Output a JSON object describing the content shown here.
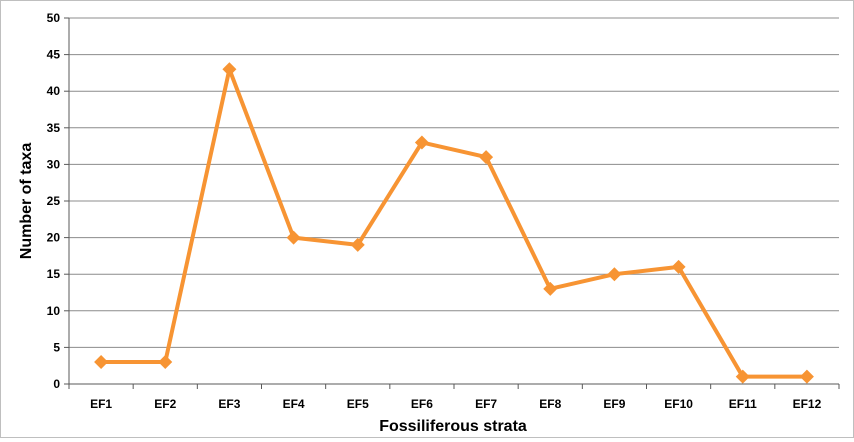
{
  "chart_data": {
    "type": "line",
    "title": "",
    "xlabel": "Fossiliferous strata",
    "ylabel": "Number of taxa",
    "categories": [
      "EF1",
      "EF2",
      "EF3",
      "EF4",
      "EF5",
      "EF6",
      "EF7",
      "EF8",
      "EF9",
      "EF10",
      "EF11",
      "EF12"
    ],
    "series": [
      {
        "values": [
          3,
          3,
          43,
          20,
          19,
          33,
          31,
          13,
          15,
          16,
          1,
          1
        ]
      }
    ],
    "ylim": [
      0,
      50
    ],
    "yticks": [
      0,
      5,
      10,
      15,
      20,
      25,
      30,
      35,
      40,
      45,
      50
    ],
    "grid": true,
    "legend": "none",
    "line_color": "#f79433",
    "marker": "diamond"
  }
}
